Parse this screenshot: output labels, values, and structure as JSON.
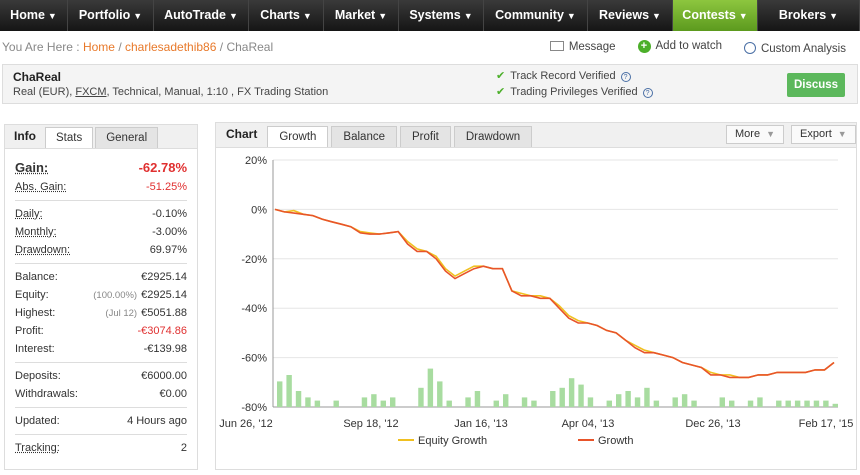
{
  "nav": {
    "items": [
      {
        "label": "Home",
        "width": 68
      },
      {
        "label": "Portfolio",
        "width": 86
      },
      {
        "label": "AutoTrade",
        "width": 95
      },
      {
        "label": "Charts",
        "width": 75
      },
      {
        "label": "Market",
        "width": 75
      },
      {
        "label": "Systems",
        "width": 85
      },
      {
        "label": "Community",
        "width": 104
      },
      {
        "label": "Reviews",
        "width": 85
      },
      {
        "label": "Contests",
        "width": 85
      },
      {
        "label": "Brokers",
        "width": 102
      }
    ],
    "active": "Contests"
  },
  "breadcrumb": {
    "prefix": "You Are Here :",
    "home": "Home",
    "user": "charlesadethib86",
    "current": "ChaReal",
    "sep": "/"
  },
  "actions": {
    "message": "Message",
    "watch": "Add to watch",
    "analysis": "Custom Analysis"
  },
  "system": {
    "name": "ChaReal",
    "desc_pre": "Real (EUR), ",
    "broker": "FXCM",
    "desc_post": ", Technical, Manual, 1:10 , FX Trading Station",
    "verif1": "Track Record Verified",
    "verif2": "Trading Privileges Verified",
    "discuss": "Discuss"
  },
  "info": {
    "title": "Info",
    "tabs": [
      "Stats",
      "General"
    ],
    "gain_label": "Gain:",
    "gain": "-62.78%",
    "abs_gain_label": "Abs. Gain:",
    "abs_gain": "-51.25%",
    "daily_label": "Daily:",
    "daily": "-0.10%",
    "monthly_label": "Monthly:",
    "monthly": "-3.00%",
    "drawdown_label": "Drawdown:",
    "drawdown": "69.97%",
    "balance_label": "Balance:",
    "balance": "€2925.14",
    "equity_label": "Equity:",
    "equity_pct": "(100.00%)",
    "equity": "€2925.14",
    "highest_label": "Highest:",
    "highest_date": "(Jul 12)",
    "highest": "€5051.88",
    "profit_label": "Profit:",
    "profit": "-€3074.86",
    "interest_label": "Interest:",
    "interest": "-€139.98",
    "deposits_label": "Deposits:",
    "deposits": "€6000.00",
    "withdrawals_label": "Withdrawals:",
    "withdrawals": "€0.00",
    "updated_label": "Updated:",
    "updated": "4 Hours ago",
    "tracking_label": "Tracking:",
    "tracking": "2"
  },
  "chart_panel": {
    "title": "Chart",
    "tabs": [
      "Growth",
      "Balance",
      "Profit",
      "Drawdown"
    ],
    "more": "More",
    "export": "Export"
  },
  "chart_data": {
    "type": "line",
    "x_ticks": [
      "Jun 26, '12",
      "Sep 18, '12",
      "Jan 16, '13",
      "Apr 04, '13",
      "Dec 26, '13",
      "Feb 17, '15"
    ],
    "y_ticks": [
      "20%",
      "0%",
      "-20%",
      "-40%",
      "-60%",
      "-80%"
    ],
    "ylim": [
      -80,
      20
    ],
    "colors": {
      "growth": "#e8542a",
      "equity": "#f0c020",
      "volume": "#a8dca0"
    },
    "series": [
      {
        "name": "Growth",
        "values": [
          0,
          -1,
          -1.5,
          -2,
          -2.5,
          -4,
          -5,
          -6,
          -7,
          -9.5,
          -10,
          -10,
          -9.5,
          -9,
          -14,
          -17,
          -17,
          -20,
          -25,
          -28,
          -26,
          -24,
          -23,
          -24,
          -24,
          -33,
          -35,
          -35,
          -36,
          -36,
          -40,
          -44,
          -46,
          -46,
          -47,
          -49,
          -50,
          -53,
          -56,
          -58,
          -58,
          -59,
          -60,
          -62,
          -63,
          -64,
          -67,
          -67,
          -68,
          -68,
          -68,
          -67,
          -67,
          -66,
          -66,
          -66,
          -66,
          -65,
          -65,
          -62
        ]
      },
      {
        "name": "Equity Growth",
        "values": [
          0,
          -1,
          -0.5,
          -2,
          -2.5,
          -4,
          -5,
          -6,
          -7,
          -9,
          -9.5,
          -10,
          -9.5,
          -9,
          -13,
          -16,
          -17,
          -19,
          -24,
          -27,
          -25,
          -23,
          -23,
          -24,
          -24,
          -33,
          -34,
          -35,
          -35,
          -36,
          -39,
          -43,
          -45,
          -46,
          -47,
          -49,
          -50,
          -53,
          -55,
          -57,
          -58,
          -59,
          -60,
          -62,
          -63,
          -64,
          -66,
          -67,
          -67,
          -68,
          -68,
          -67,
          -67,
          -66,
          -66,
          -66,
          -66,
          -65,
          -65,
          -62
        ]
      }
    ],
    "volume": [
      8,
      10,
      5,
      3,
      2,
      0,
      2,
      0,
      0,
      3,
      4,
      2,
      3,
      0,
      0,
      6,
      12,
      8,
      2,
      0,
      3,
      5,
      0,
      2,
      4,
      0,
      3,
      2,
      0,
      5,
      6,
      9,
      7,
      3,
      0,
      2,
      4,
      5,
      3,
      6,
      2,
      0,
      3,
      4,
      2,
      0,
      0,
      3,
      2,
      0,
      2,
      3,
      0,
      2,
      2,
      2,
      2,
      2,
      2,
      1
    ]
  }
}
